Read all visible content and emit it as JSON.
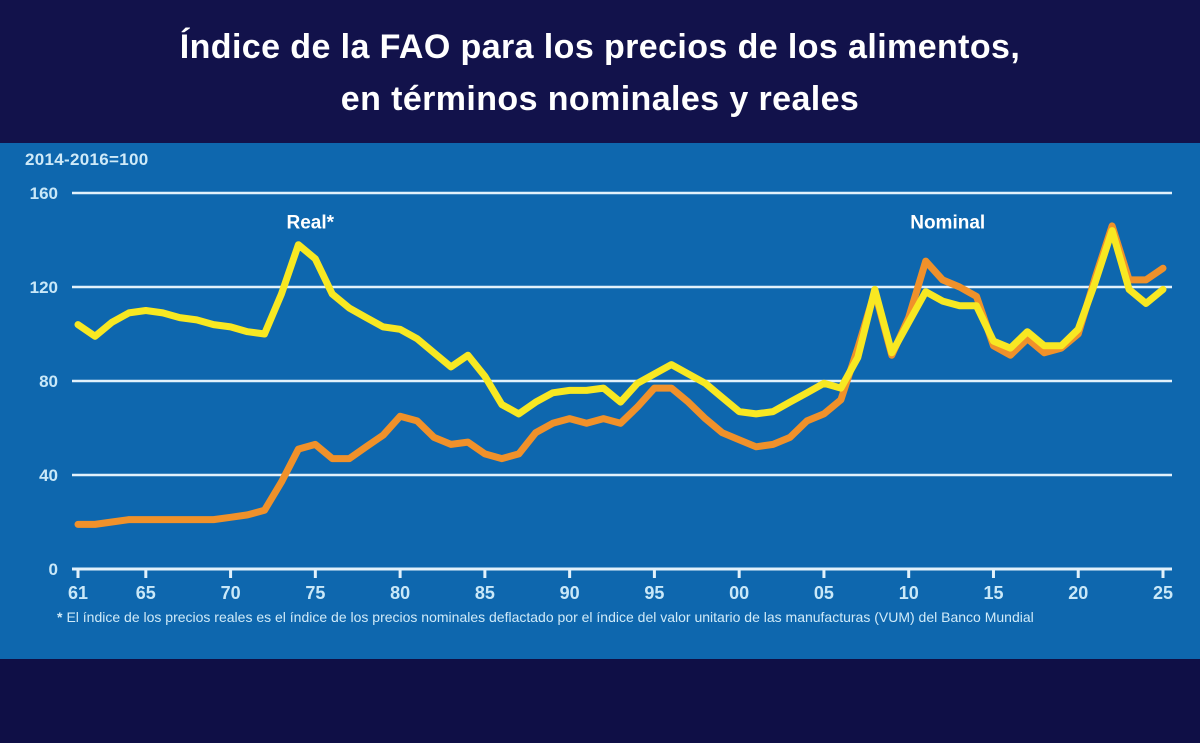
{
  "title": {
    "line1": "Índice de la FAO para los precios de los alimentos,",
    "line2": "en términos nominales y reales"
  },
  "chart": {
    "unit_label": "2014-2016=100",
    "footnote_marker": "*",
    "footnote": "El índice de los precios reales es el índice de los precios nominales deflactado por el índice del valor unitario de las manufacturas (VUM) del Banco Mundial"
  },
  "colors": {
    "banner_navy": "#12124b",
    "page_navy": "#0f0f46",
    "chart_blue": "#0e67ae",
    "gridline": "#e2f1fb",
    "axis_text": "#c9e8f8",
    "title_text": "#ffffff",
    "legend_text": "#ffffff",
    "footnote_text": "#cfeaf8",
    "real_yellow": "#f8e822",
    "nominal_orange": "#f0912a"
  },
  "chart_data": {
    "type": "line",
    "title": "Índice de la FAO para los precios de los alimentos, en términos nominales y reales",
    "unit_note": "2014-2016=100",
    "xlabel": "",
    "ylabel": "",
    "ylim": [
      0,
      160
    ],
    "yticks": [
      0,
      40,
      80,
      120,
      160
    ],
    "ytick_labels": [
      "0",
      "40",
      "80",
      "120",
      "160"
    ],
    "grid": "horizontal",
    "legend_position": "inline-annotations",
    "x_tick_years": [
      1961,
      1965,
      1970,
      1975,
      1980,
      1985,
      1990,
      1995,
      2000,
      2005,
      2010,
      2015,
      2020,
      2025
    ],
    "x_tick_labels": [
      "61",
      "65",
      "70",
      "75",
      "80",
      "85",
      "90",
      "95",
      "00",
      "05",
      "10",
      "15",
      "20",
      "25"
    ],
    "x": [
      1961,
      1962,
      1963,
      1964,
      1965,
      1966,
      1967,
      1968,
      1969,
      1970,
      1971,
      1972,
      1973,
      1974,
      1975,
      1976,
      1977,
      1978,
      1979,
      1980,
      1981,
      1982,
      1983,
      1984,
      1985,
      1986,
      1987,
      1988,
      1989,
      1990,
      1991,
      1992,
      1993,
      1994,
      1995,
      1996,
      1997,
      1998,
      1999,
      2000,
      2001,
      2002,
      2003,
      2004,
      2005,
      2006,
      2007,
      2008,
      2009,
      2010,
      2011,
      2012,
      2013,
      2014,
      2015,
      2016,
      2017,
      2018,
      2019,
      2020,
      2021,
      2022,
      2023,
      2024,
      2025
    ],
    "series": [
      {
        "name": "Nominal",
        "color": "#f0912a",
        "values": [
          19,
          19,
          20,
          21,
          21,
          21,
          21,
          21,
          21,
          22,
          23,
          25,
          37,
          51,
          53,
          47,
          47,
          52,
          57,
          65,
          63,
          56,
          53,
          54,
          49,
          47,
          49,
          58,
          62,
          64,
          62,
          64,
          62,
          69,
          77,
          77,
          71,
          64,
          58,
          55,
          52,
          53,
          56,
          63,
          66,
          72,
          94,
          118,
          91,
          107,
          131,
          123,
          120,
          116,
          95,
          91,
          98,
          92,
          94,
          100,
          124,
          146,
          123,
          123,
          128
        ]
      },
      {
        "name": "Real*",
        "color": "#f8e822",
        "values": [
          104,
          99,
          105,
          109,
          110,
          109,
          107,
          106,
          104,
          103,
          101,
          100,
          117,
          138,
          132,
          117,
          111,
          107,
          103,
          102,
          98,
          92,
          86,
          91,
          82,
          70,
          66,
          71,
          75,
          76,
          76,
          77,
          71,
          79,
          83,
          87,
          83,
          79,
          73,
          67,
          66,
          67,
          71,
          75,
          79,
          77,
          90,
          119,
          92,
          105,
          118,
          114,
          112,
          112,
          97,
          94,
          101,
          95,
          95,
          102,
          122,
          144,
          119,
          113,
          119
        ]
      }
    ],
    "annotations": [
      {
        "text": "Real*",
        "x": 1974.7,
        "y": 145
      },
      {
        "text": "Nominal",
        "x": 2012.3,
        "y": 145
      }
    ]
  }
}
